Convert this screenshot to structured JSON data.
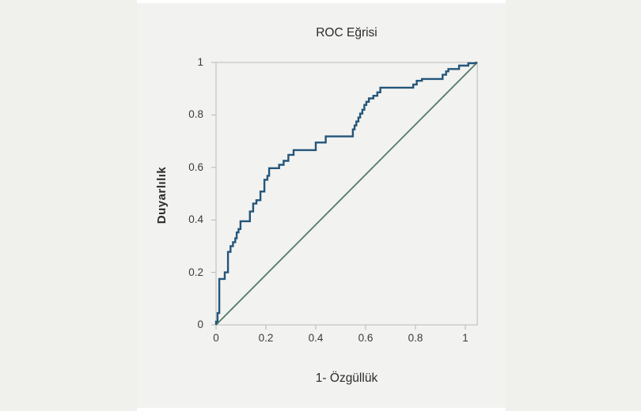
{
  "chart_data": {
    "type": "line",
    "title": "ROC Eğrisi",
    "xlabel": "1- Özgüllük",
    "ylabel": "Duyarlılık",
    "xlim": [
      0,
      1.048
    ],
    "ylim": [
      0,
      1
    ],
    "grid": false,
    "legend_position": "none",
    "x_ticks": [
      0,
      0.2,
      0.4,
      0.6,
      0.8,
      1
    ],
    "x_tick_labels": [
      "0",
      "0.2",
      "0.4",
      "0.6",
      "0.8",
      "1"
    ],
    "y_ticks": [
      0,
      0.2,
      0.4,
      0.6,
      0.8,
      1
    ],
    "y_tick_labels": [
      "0",
      "0.2",
      "0.4",
      "0.6",
      "0.8",
      "1"
    ],
    "series": [
      {
        "name": "roc-curve",
        "color": "#24557a",
        "width": 2.4,
        "points": [
          [
            0,
            0
          ],
          [
            0,
            0.012
          ],
          [
            0.006,
            0.012
          ],
          [
            0.006,
            0.045
          ],
          [
            0.013,
            0.045
          ],
          [
            0.013,
            0.175
          ],
          [
            0.035,
            0.175
          ],
          [
            0.035,
            0.2
          ],
          [
            0.048,
            0.2
          ],
          [
            0.048,
            0.278
          ],
          [
            0.058,
            0.278
          ],
          [
            0.058,
            0.3
          ],
          [
            0.068,
            0.3
          ],
          [
            0.068,
            0.315
          ],
          [
            0.077,
            0.315
          ],
          [
            0.077,
            0.33
          ],
          [
            0.083,
            0.33
          ],
          [
            0.083,
            0.352
          ],
          [
            0.09,
            0.352
          ],
          [
            0.09,
            0.365
          ],
          [
            0.098,
            0.365
          ],
          [
            0.098,
            0.395
          ],
          [
            0.136,
            0.395
          ],
          [
            0.136,
            0.432
          ],
          [
            0.149,
            0.432
          ],
          [
            0.149,
            0.462
          ],
          [
            0.162,
            0.462
          ],
          [
            0.162,
            0.475
          ],
          [
            0.178,
            0.475
          ],
          [
            0.178,
            0.508
          ],
          [
            0.194,
            0.508
          ],
          [
            0.194,
            0.553
          ],
          [
            0.206,
            0.553
          ],
          [
            0.206,
            0.568
          ],
          [
            0.213,
            0.568
          ],
          [
            0.213,
            0.597
          ],
          [
            0.253,
            0.597
          ],
          [
            0.253,
            0.61
          ],
          [
            0.271,
            0.61
          ],
          [
            0.271,
            0.625
          ],
          [
            0.29,
            0.625
          ],
          [
            0.29,
            0.648
          ],
          [
            0.311,
            0.648
          ],
          [
            0.311,
            0.666
          ],
          [
            0.4,
            0.666
          ],
          [
            0.4,
            0.695
          ],
          [
            0.44,
            0.695
          ],
          [
            0.44,
            0.718
          ],
          [
            0.549,
            0.718
          ],
          [
            0.549,
            0.745
          ],
          [
            0.556,
            0.745
          ],
          [
            0.556,
            0.76
          ],
          [
            0.563,
            0.76
          ],
          [
            0.563,
            0.775
          ],
          [
            0.571,
            0.775
          ],
          [
            0.571,
            0.79
          ],
          [
            0.578,
            0.79
          ],
          [
            0.578,
            0.805
          ],
          [
            0.587,
            0.805
          ],
          [
            0.587,
            0.82
          ],
          [
            0.595,
            0.82
          ],
          [
            0.595,
            0.838
          ],
          [
            0.603,
            0.838
          ],
          [
            0.603,
            0.85
          ],
          [
            0.613,
            0.85
          ],
          [
            0.613,
            0.863
          ],
          [
            0.631,
            0.863
          ],
          [
            0.631,
            0.873
          ],
          [
            0.647,
            0.873
          ],
          [
            0.647,
            0.886
          ],
          [
            0.659,
            0.886
          ],
          [
            0.659,
            0.904
          ],
          [
            0.791,
            0.904
          ],
          [
            0.791,
            0.916
          ],
          [
            0.805,
            0.916
          ],
          [
            0.805,
            0.93
          ],
          [
            0.826,
            0.93
          ],
          [
            0.826,
            0.937
          ],
          [
            0.909,
            0.937
          ],
          [
            0.909,
            0.953
          ],
          [
            0.923,
            0.953
          ],
          [
            0.923,
            0.966
          ],
          [
            0.932,
            0.966
          ],
          [
            0.932,
            0.975
          ],
          [
            0.975,
            0.975
          ],
          [
            0.975,
            0.988
          ],
          [
            1.012,
            0.988
          ],
          [
            1.012,
            0.997
          ],
          [
            1.035,
            0.997
          ],
          [
            1.048,
            1
          ]
        ]
      },
      {
        "name": "reference-diagonal",
        "color": "#527a68",
        "width": 1.8,
        "points": [
          [
            0,
            0
          ],
          [
            1.048,
            1
          ]
        ]
      }
    ],
    "colors": {
      "curve": "#24557a",
      "reference": "#527a68",
      "frame": "#c4c4c2",
      "tick": "#b5b5b3",
      "plot_background": "#f2f2f0",
      "page_background": "#f0f0ed",
      "column_background": "#ffffff",
      "text": "#2b2b2b"
    }
  }
}
